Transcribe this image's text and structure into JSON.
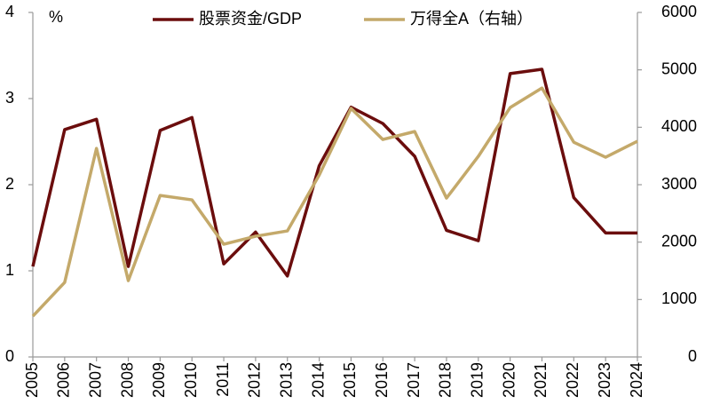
{
  "chart_data": {
    "type": "line",
    "y_unit": "%",
    "categories": [
      "2005",
      "2006",
      "2007",
      "2008",
      "2009",
      "2010",
      "2011",
      "2012",
      "2013",
      "2014",
      "2015",
      "2016",
      "2017",
      "2018",
      "2019",
      "2020",
      "2021",
      "2022",
      "2023",
      "2024"
    ],
    "series": [
      {
        "name": "股票资金/GDP",
        "color": "#6b0d0d",
        "values": [
          1.05,
          2.64,
          2.76,
          1.05,
          2.63,
          2.78,
          1.08,
          1.45,
          0.94,
          2.22,
          2.9,
          2.71,
          2.33,
          1.47,
          1.35,
          3.29,
          3.34,
          1.85,
          1.44,
          1.44
        ]
      },
      {
        "name": "万得全A（右轴）",
        "color": "#c4a96a",
        "axis": "y2",
        "values": [
          711,
          1298,
          3632,
          1329,
          2813,
          2736,
          1963,
          2102,
          2195,
          3168,
          4328,
          3787,
          3926,
          2767,
          3493,
          4343,
          4683,
          3740,
          3478,
          3756
        ]
      }
    ],
    "ylim": [
      0,
      4
    ],
    "yticks": [
      0,
      1,
      2,
      3,
      4
    ],
    "y2lim": [
      0,
      6000
    ],
    "y2ticks": [
      0,
      1000,
      2000,
      3000,
      4000,
      5000,
      6000
    ],
    "legend": "top",
    "grid": false
  }
}
